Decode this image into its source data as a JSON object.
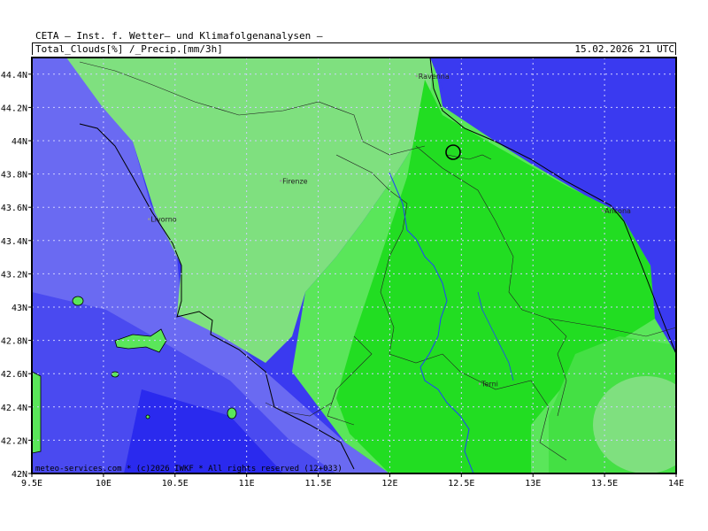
{
  "header": {
    "title": "CETA — Inst. f. Wetter— und Klimafolgenanalysen —",
    "subtitle": "Total_Clouds[%] /_Precip.[mm/3h]",
    "datetime": "15.02.2026 21 UTC"
  },
  "map": {
    "lon_range": [
      9.5,
      14.0
    ],
    "lat_range": [
      42.0,
      44.5
    ],
    "lon_ticks": [
      "9.5E",
      "10E",
      "10.5E",
      "11E",
      "11.5E",
      "12E",
      "12.5E",
      "13E",
      "13.5E",
      "14E"
    ],
    "lat_ticks": [
      "42N",
      "42.2N",
      "42.4N",
      "42.6N",
      "42.8N",
      "43N",
      "43.2N",
      "43.4N",
      "43.6N",
      "43.8N",
      "44N",
      "44.2N",
      "44.4N"
    ],
    "cities": [
      {
        "name": "Ravenna",
        "lon": 12.2,
        "lat": 44.41
      },
      {
        "name": "Firenze",
        "lon": 11.25,
        "lat": 43.78
      },
      {
        "name": "Livorno",
        "lon": 10.33,
        "lat": 43.55
      },
      {
        "name": "Ancona",
        "lon": 13.5,
        "lat": 43.6
      },
      {
        "name": "Terni",
        "lon": 12.64,
        "lat": 42.56
      }
    ],
    "colors": {
      "sea_dark": "#2a2aee",
      "sea_mid": "#4444f0",
      "sea_light": "#6a6af2",
      "cloud_light": "#7fe07f",
      "cloud_mid": "#5ae65a",
      "cloud_dark": "#22dd22",
      "cloud_alt": "#44e044"
    }
  },
  "footer": {
    "credit": "meteo-services.com * (c)2026 IWKF * All rights reserved (12+033)"
  }
}
